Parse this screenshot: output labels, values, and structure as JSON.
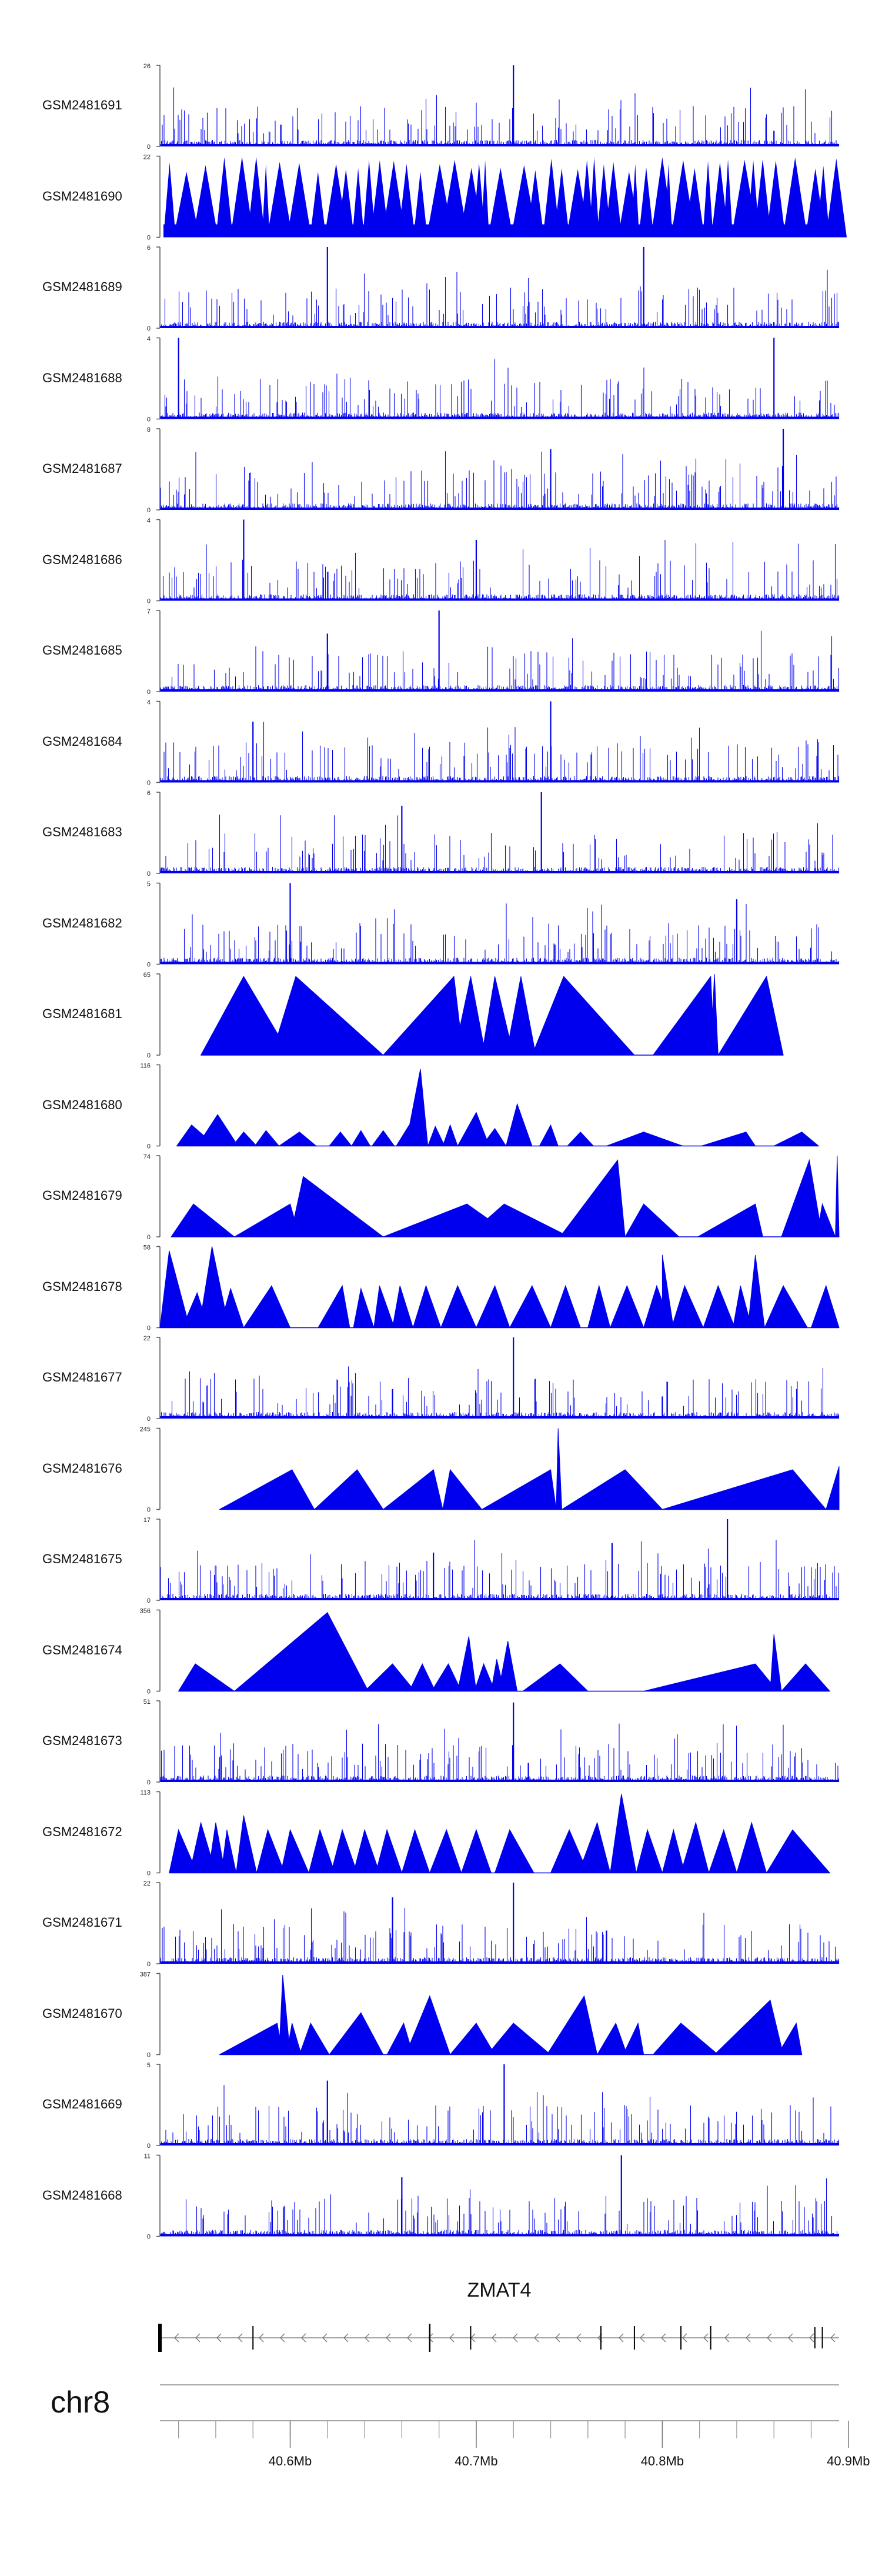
{
  "chart_data": {
    "type": "area",
    "title": "",
    "chromosome": "chr8",
    "gene": {
      "name": "ZMAT4",
      "strand": "-",
      "start": 40.53,
      "end": 40.895
    },
    "x_range_mb": [
      40.53,
      40.895
    ],
    "x_ticks": [
      40.6,
      40.7,
      40.8,
      40.9
    ],
    "x_tick_labels": [
      "40.6Mb",
      "40.7Mb",
      "40.8Mb",
      "40.9Mb"
    ],
    "tracks": [
      {
        "name": "GSM2481691",
        "ymax": 26,
        "style": "dense",
        "seed": 11,
        "peaks": [
          [
            40.72,
            26
          ],
          [
            40.595,
            7
          ],
          [
            40.86,
            5
          ]
        ]
      },
      {
        "name": "GSM2481690",
        "ymax": 22,
        "style": "comb",
        "seed": 12,
        "peaks": [
          [
            40.785,
            22
          ],
          [
            40.64,
            21
          ],
          [
            40.56,
            21
          ]
        ]
      },
      {
        "name": "GSM2481689",
        "ymax": 6,
        "style": "dense",
        "seed": 13,
        "peaks": [
          [
            40.62,
            6
          ],
          [
            40.79,
            6
          ]
        ]
      },
      {
        "name": "GSM2481688",
        "ymax": 4,
        "style": "dense",
        "seed": 14,
        "peaks": [
          [
            40.54,
            4
          ],
          [
            40.86,
            4
          ]
        ]
      },
      {
        "name": "GSM2481687",
        "ymax": 8,
        "style": "dense",
        "seed": 15,
        "peaks": [
          [
            40.865,
            8
          ],
          [
            40.74,
            6
          ]
        ]
      },
      {
        "name": "GSM2481686",
        "ymax": 4,
        "style": "dense",
        "seed": 16,
        "peaks": [
          [
            40.575,
            4
          ],
          [
            40.7,
            3
          ]
        ]
      },
      {
        "name": "GSM2481685",
        "ymax": 7,
        "style": "dense",
        "seed": 17,
        "peaks": [
          [
            40.68,
            7
          ],
          [
            40.62,
            5
          ]
        ]
      },
      {
        "name": "GSM2481684",
        "ymax": 4,
        "style": "dense",
        "seed": 18,
        "peaks": [
          [
            40.74,
            4
          ],
          [
            40.58,
            3
          ]
        ]
      },
      {
        "name": "GSM2481683",
        "ymax": 6,
        "style": "dense",
        "seed": 19,
        "peaks": [
          [
            40.735,
            6
          ],
          [
            40.66,
            5
          ]
        ]
      },
      {
        "name": "GSM2481682",
        "ymax": 5,
        "style": "dense",
        "seed": 20,
        "peaks": [
          [
            40.6,
            5
          ],
          [
            40.84,
            4
          ]
        ]
      },
      {
        "name": "GSM2481681",
        "ymax": 65,
        "style": "triangles",
        "tris": [
          [
            40.552,
            40.575,
            40.6,
            63
          ],
          [
            40.59,
            40.603,
            40.65,
            63
          ],
          [
            40.65,
            40.688,
            40.693,
            63
          ],
          [
            40.688,
            40.697,
            40.705,
            63
          ],
          [
            40.703,
            40.71,
            40.72,
            63
          ],
          [
            40.716,
            40.724,
            40.732,
            63
          ],
          [
            40.73,
            40.747,
            40.785,
            63
          ],
          [
            40.795,
            40.826,
            40.828,
            63
          ],
          [
            40.826,
            40.828,
            40.83,
            65
          ],
          [
            40.83,
            40.856,
            40.865,
            63
          ]
        ]
      },
      {
        "name": "GSM2481680",
        "ymax": 116,
        "style": "triangles",
        "tris": [
          [
            40.539,
            40.547,
            40.56,
            30
          ],
          [
            40.55,
            40.561,
            40.572,
            45
          ],
          [
            40.569,
            40.575,
            40.582,
            20
          ],
          [
            40.581,
            40.587,
            40.594,
            22
          ],
          [
            40.594,
            40.605,
            40.614,
            20
          ],
          [
            40.621,
            40.627,
            40.633,
            20
          ],
          [
            40.633,
            40.638,
            40.643,
            22
          ],
          [
            40.644,
            40.65,
            40.656,
            22
          ],
          [
            40.657,
            40.664,
            40.671,
            30
          ],
          [
            40.662,
            40.67,
            40.674,
            110
          ],
          [
            40.674,
            40.678,
            40.683,
            28
          ],
          [
            40.682,
            40.686,
            40.69,
            30
          ],
          [
            40.69,
            40.7,
            40.707,
            48
          ],
          [
            40.703,
            40.71,
            40.716,
            25
          ],
          [
            40.716,
            40.722,
            40.73,
            60
          ],
          [
            40.734,
            40.74,
            40.744,
            30
          ],
          [
            40.749,
            40.756,
            40.763,
            20
          ],
          [
            40.77,
            40.79,
            40.811,
            20
          ],
          [
            40.821,
            40.845,
            40.85,
            20
          ],
          [
            40.86,
            40.875,
            40.884,
            20
          ]
        ]
      },
      {
        "name": "GSM2481679",
        "ymax": 74,
        "style": "triangles",
        "tris": [
          [
            40.536,
            40.548,
            40.57,
            30
          ],
          [
            40.57,
            40.6,
            40.605,
            30
          ],
          [
            40.6,
            40.607,
            40.65,
            55
          ],
          [
            40.65,
            40.695,
            40.72,
            30
          ],
          [
            40.695,
            40.715,
            40.75,
            30
          ],
          [
            40.745,
            40.776,
            40.78,
            70
          ],
          [
            40.78,
            40.79,
            40.809,
            30
          ],
          [
            40.819,
            40.85,
            40.854,
            30
          ],
          [
            40.864,
            40.879,
            40.886,
            70
          ],
          [
            40.883,
            40.886,
            40.893,
            30
          ],
          [
            40.893,
            40.894,
            40.895,
            74
          ]
        ]
      },
      {
        "name": "GSM2481678",
        "ymax": 58,
        "style": "triangles",
        "tris": [
          [
            40.53,
            40.535,
            40.546,
            55
          ],
          [
            40.542,
            40.55,
            40.556,
            25
          ],
          [
            40.551,
            40.558,
            40.567,
            58
          ],
          [
            40.562,
            40.568,
            40.575,
            28
          ],
          [
            40.575,
            40.59,
            40.6,
            30
          ],
          [
            40.615,
            40.628,
            40.632,
            30
          ],
          [
            40.634,
            40.638,
            40.645,
            28
          ],
          [
            40.645,
            40.648,
            40.656,
            30
          ],
          [
            40.655,
            40.659,
            40.666,
            30
          ],
          [
            40.666,
            40.673,
            40.681,
            30
          ],
          [
            40.681,
            40.69,
            40.7,
            30
          ],
          [
            40.7,
            40.71,
            40.718,
            30
          ],
          [
            40.718,
            40.73,
            40.74,
            30
          ],
          [
            40.74,
            40.748,
            40.756,
            30
          ],
          [
            40.76,
            40.766,
            40.772,
            30
          ],
          [
            40.772,
            40.781,
            40.79,
            30
          ],
          [
            40.79,
            40.797,
            40.805,
            30
          ],
          [
            40.8,
            40.8,
            40.806,
            52
          ],
          [
            40.805,
            40.812,
            40.822,
            30
          ],
          [
            40.822,
            40.83,
            40.839,
            30
          ],
          [
            40.838,
            40.842,
            40.848,
            30
          ],
          [
            40.846,
            40.85,
            40.855,
            52
          ],
          [
            40.855,
            40.865,
            40.878,
            30
          ],
          [
            40.88,
            40.888,
            40.895,
            30
          ]
        ]
      },
      {
        "name": "GSM2481677",
        "ymax": 22,
        "style": "dense",
        "seed": 27,
        "peaks": [
          [
            40.72,
            22
          ],
          [
            40.655,
            8
          ],
          [
            40.8,
            6
          ]
        ]
      },
      {
        "name": "GSM2481676",
        "ymax": 245,
        "style": "triangles",
        "tris": [
          [
            40.562,
            40.601,
            40.613,
            120
          ],
          [
            40.613,
            40.636,
            40.65,
            120
          ],
          [
            40.65,
            40.677,
            40.682,
            120
          ],
          [
            40.682,
            40.686,
            40.703,
            120
          ],
          [
            40.703,
            40.74,
            40.743,
            120
          ],
          [
            40.743,
            40.744,
            40.746,
            245
          ],
          [
            40.746,
            40.78,
            40.8,
            120
          ],
          [
            40.8,
            40.87,
            40.888,
            120
          ],
          [
            40.888,
            40.895,
            40.895,
            130
          ]
        ]
      },
      {
        "name": "GSM2481675",
        "ymax": 17,
        "style": "dense",
        "seed": 29,
        "peaks": [
          [
            40.835,
            17
          ],
          [
            40.773,
            12
          ],
          [
            40.677,
            10
          ]
        ]
      },
      {
        "name": "GSM2481674",
        "ymax": 356,
        "style": "triangles",
        "tris": [
          [
            40.54,
            40.549,
            40.57,
            120
          ],
          [
            40.57,
            40.62,
            40.642,
            345
          ],
          [
            40.64,
            40.655,
            40.667,
            120
          ],
          [
            40.664,
            40.671,
            40.678,
            120
          ],
          [
            40.676,
            40.685,
            40.692,
            120
          ],
          [
            40.69,
            40.696,
            40.7,
            240
          ],
          [
            40.699,
            40.704,
            40.71,
            120
          ],
          [
            40.708,
            40.711,
            40.715,
            140
          ],
          [
            40.712,
            40.717,
            40.722,
            220
          ],
          [
            40.725,
            40.745,
            40.76,
            120
          ],
          [
            40.79,
            40.85,
            40.862,
            120
          ],
          [
            40.858,
            40.86,
            40.864,
            250
          ],
          [
            40.864,
            40.877,
            40.89,
            120
          ]
        ]
      },
      {
        "name": "GSM2481673",
        "ymax": 51,
        "style": "dense",
        "seed": 33,
        "peaks": [
          [
            40.72,
            50
          ],
          [
            40.728,
            12
          ]
        ]
      },
      {
        "name": "GSM2481672",
        "ymax": 113,
        "style": "triangles",
        "tris": [
          [
            40.535,
            40.54,
            40.55,
            60
          ],
          [
            40.546,
            40.552,
            40.56,
            70
          ],
          [
            40.556,
            40.56,
            40.565,
            70
          ],
          [
            40.563,
            40.566,
            40.571,
            60
          ],
          [
            40.571,
            40.575,
            40.582,
            80
          ],
          [
            40.582,
            40.588,
            40.597,
            60
          ],
          [
            40.595,
            40.6,
            40.61,
            60
          ],
          [
            40.61,
            40.616,
            40.624,
            60
          ],
          [
            40.622,
            40.628,
            40.636,
            60
          ],
          [
            40.634,
            40.64,
            40.648,
            60
          ],
          [
            40.646,
            40.652,
            40.66,
            60
          ],
          [
            40.66,
            40.667,
            40.675,
            60
          ],
          [
            40.675,
            40.684,
            40.692,
            60
          ],
          [
            40.692,
            40.7,
            40.708,
            60
          ],
          [
            40.71,
            40.718,
            40.731,
            60
          ],
          [
            40.74,
            40.75,
            40.76,
            60
          ],
          [
            40.755,
            40.765,
            40.772,
            70
          ],
          [
            40.772,
            40.778,
            40.786,
            110
          ],
          [
            40.786,
            40.792,
            40.8,
            60
          ],
          [
            40.8,
            40.806,
            40.812,
            60
          ],
          [
            40.81,
            40.818,
            40.825,
            70
          ],
          [
            40.825,
            40.833,
            40.84,
            60
          ],
          [
            40.84,
            40.848,
            40.856,
            70
          ],
          [
            40.856,
            40.87,
            40.89,
            60
          ]
        ]
      },
      {
        "name": "GSM2481671",
        "ymax": 22,
        "style": "dense",
        "seed": 35,
        "peaks": [
          [
            40.72,
            22
          ],
          [
            40.655,
            18
          ],
          [
            40.77,
            9
          ]
        ]
      },
      {
        "name": "GSM2481670",
        "ymax": 387,
        "style": "triangles",
        "tris": [
          [
            40.562,
            40.593,
            40.596,
            150
          ],
          [
            40.594,
            40.596,
            40.6,
            380
          ],
          [
            40.598,
            40.601,
            40.606,
            150
          ],
          [
            40.605,
            40.611,
            40.621,
            150
          ],
          [
            40.621,
            40.638,
            40.65,
            200
          ],
          [
            40.652,
            40.661,
            40.666,
            150
          ],
          [
            40.662,
            40.675,
            40.686,
            280
          ],
          [
            40.686,
            40.7,
            40.71,
            150
          ],
          [
            40.706,
            40.72,
            40.74,
            150
          ],
          [
            40.738,
            40.758,
            40.765,
            280
          ],
          [
            40.765,
            40.775,
            40.781,
            150
          ],
          [
            40.779,
            40.787,
            40.79,
            150
          ],
          [
            40.795,
            40.81,
            40.83,
            150
          ],
          [
            40.828,
            40.858,
            40.865,
            260
          ],
          [
            40.862,
            40.872,
            40.875,
            150
          ]
        ]
      },
      {
        "name": "GSM2481669",
        "ymax": 5,
        "style": "dense",
        "seed": 39,
        "peaks": [
          [
            40.715,
            5
          ],
          [
            40.62,
            4
          ]
        ]
      },
      {
        "name": "GSM2481668",
        "ymax": 11,
        "style": "dense",
        "seed": 40,
        "peaks": [
          [
            40.778,
            11
          ],
          [
            40.66,
            8
          ]
        ]
      }
    ],
    "colors": {
      "fill": "#0000ee",
      "axis": "#555555",
      "gene": "#000000",
      "text": "#111111"
    }
  }
}
